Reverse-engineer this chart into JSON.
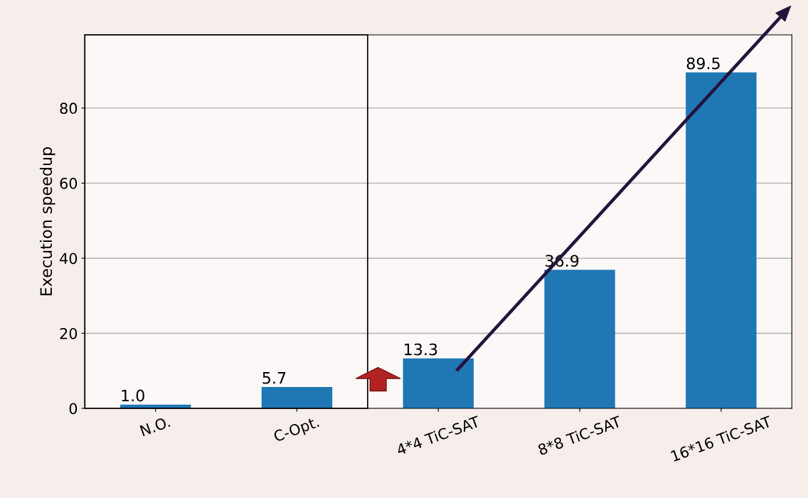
{
  "chart_data": {
    "type": "bar",
    "ylabel": "Execution speedup",
    "categories": [
      "N.O.",
      "C-Opt.",
      "4*4 TiC-SAT",
      "8*8 TiC-SAT",
      "16*16 TiC-SAT"
    ],
    "values": [
      1.0,
      5.7,
      13.3,
      36.9,
      89.5
    ],
    "color": "#1f77b4",
    "ylim": [
      0,
      99.5
    ],
    "yticks": [
      0,
      20,
      40,
      60,
      80
    ],
    "value_labels": [
      "1.0",
      "5.7",
      "13.3",
      "36.9",
      "89.5"
    ],
    "grid": "y"
  }
}
